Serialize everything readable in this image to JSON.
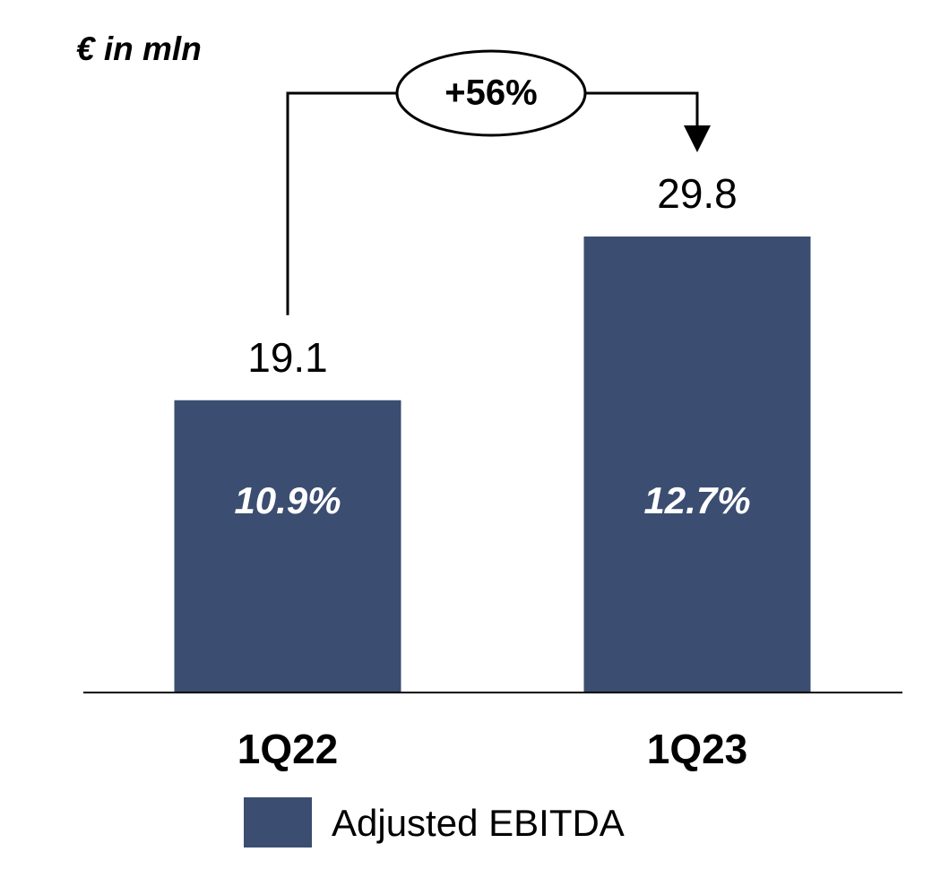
{
  "chart_data": {
    "type": "bar",
    "unit_label": "€ in mln",
    "growth_label": "+56%",
    "categories": [
      "1Q22",
      "1Q23"
    ],
    "series": [
      {
        "name": "Adjusted EBITDA",
        "color": "#3b4d70",
        "values": [
          19.1,
          29.8
        ]
      }
    ],
    "inner_labels": [
      "10.9%",
      "12.7%"
    ],
    "legend": "bottom"
  }
}
